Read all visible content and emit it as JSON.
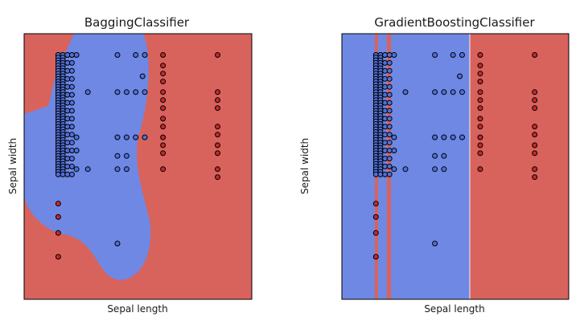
{
  "chart_data": [
    {
      "type": "scatter",
      "title": "BaggingClassifier",
      "xlabel": "Sepal length",
      "ylabel": "Sepal width",
      "xlim": [
        0,
        10
      ],
      "ylim": [
        0,
        10
      ],
      "ticks_shown": false,
      "grid": false,
      "legend": "none",
      "background": "decision regions",
      "region_colors": {
        "class_0": "#d8635c",
        "class_1": "#6f88e4"
      },
      "point_colors": {
        "class_0": "#c22a2a",
        "class_1": "#5070d8"
      },
      "series": [
        {
          "class": "class_1",
          "points": [
            [
              1.5,
              9.2
            ],
            [
              1.7,
              9.2
            ],
            [
              1.9,
              9.2
            ],
            [
              2.1,
              9.2
            ],
            [
              2.3,
              9.2
            ],
            [
              4.1,
              9.2
            ],
            [
              4.9,
              9.2
            ],
            [
              5.3,
              9.2
            ],
            [
              1.5,
              7.8
            ],
            [
              2.8,
              7.8
            ],
            [
              4.1,
              7.8
            ],
            [
              4.5,
              7.8
            ],
            [
              4.9,
              7.8
            ],
            [
              5.3,
              7.8
            ],
            [
              5.2,
              8.4
            ],
            [
              2.3,
              6.1
            ],
            [
              4.1,
              6.1
            ],
            [
              4.5,
              6.1
            ],
            [
              4.9,
              6.1
            ],
            [
              5.3,
              6.1
            ],
            [
              2.3,
              5.6
            ],
            [
              4.1,
              5.4
            ],
            [
              4.5,
              5.4
            ],
            [
              2.3,
              4.9
            ],
            [
              2.8,
              4.9
            ],
            [
              4.1,
              4.9
            ],
            [
              4.5,
              4.9
            ],
            [
              4.1,
              2.1
            ]
          ]
        },
        {
          "class": "class_0",
          "points": [
            [
              6.1,
              9.2
            ],
            [
              6.1,
              8.8
            ],
            [
              6.1,
              8.5
            ],
            [
              6.1,
              8.2
            ],
            [
              6.1,
              7.8
            ],
            [
              6.1,
              7.5
            ],
            [
              6.1,
              7.2
            ],
            [
              6.1,
              6.8
            ],
            [
              6.1,
              6.5
            ],
            [
              6.1,
              6.1
            ],
            [
              6.1,
              5.8
            ],
            [
              6.1,
              5.5
            ],
            [
              6.1,
              4.9
            ],
            [
              8.5,
              9.2
            ],
            [
              8.5,
              7.8
            ],
            [
              8.5,
              7.5
            ],
            [
              8.5,
              7.2
            ],
            [
              8.5,
              6.5
            ],
            [
              8.5,
              6.2
            ],
            [
              8.5,
              5.8
            ],
            [
              8.5,
              5.5
            ],
            [
              8.5,
              4.9
            ],
            [
              8.5,
              4.6
            ],
            [
              1.5,
              3.6
            ],
            [
              1.5,
              3.1
            ],
            [
              1.5,
              2.5
            ],
            [
              1.5,
              1.6
            ]
          ]
        }
      ]
    },
    {
      "type": "scatter",
      "title": "GradientBoostingClassifier",
      "xlabel": "Sepal length",
      "ylabel": "Sepal width",
      "xlim": [
        0,
        10
      ],
      "ylim": [
        0,
        10
      ],
      "ticks_shown": false,
      "grid": false,
      "legend": "none",
      "background": "decision regions",
      "region_colors": {
        "class_0": "#d8635c",
        "class_1": "#6f88e4"
      },
      "point_colors": {
        "class_0": "#c22a2a",
        "class_1": "#5070d8"
      },
      "series": [
        {
          "class": "class_1",
          "points": [
            [
              1.5,
              9.2
            ],
            [
              1.7,
              9.2
            ],
            [
              1.9,
              9.2
            ],
            [
              2.1,
              9.2
            ],
            [
              2.3,
              9.2
            ],
            [
              4.1,
              9.2
            ],
            [
              4.9,
              9.2
            ],
            [
              5.3,
              9.2
            ],
            [
              1.5,
              7.8
            ],
            [
              2.8,
              7.8
            ],
            [
              4.1,
              7.8
            ],
            [
              4.5,
              7.8
            ],
            [
              4.9,
              7.8
            ],
            [
              5.3,
              7.8
            ],
            [
              5.2,
              8.4
            ],
            [
              2.3,
              6.1
            ],
            [
              4.1,
              6.1
            ],
            [
              4.5,
              6.1
            ],
            [
              4.9,
              6.1
            ],
            [
              5.3,
              6.1
            ],
            [
              2.3,
              5.6
            ],
            [
              4.1,
              5.4
            ],
            [
              4.5,
              5.4
            ],
            [
              2.3,
              4.9
            ],
            [
              2.8,
              4.9
            ],
            [
              4.1,
              4.9
            ],
            [
              4.5,
              4.9
            ],
            [
              4.1,
              2.1
            ]
          ]
        },
        {
          "class": "class_0",
          "points": [
            [
              6.1,
              9.2
            ],
            [
              6.1,
              8.8
            ],
            [
              6.1,
              8.5
            ],
            [
              6.1,
              8.2
            ],
            [
              6.1,
              7.8
            ],
            [
              6.1,
              7.5
            ],
            [
              6.1,
              7.2
            ],
            [
              6.1,
              6.8
            ],
            [
              6.1,
              6.5
            ],
            [
              6.1,
              6.1
            ],
            [
              6.1,
              5.8
            ],
            [
              6.1,
              5.5
            ],
            [
              6.1,
              4.9
            ],
            [
              8.5,
              9.2
            ],
            [
              8.5,
              7.8
            ],
            [
              8.5,
              7.5
            ],
            [
              8.5,
              7.2
            ],
            [
              8.5,
              6.5
            ],
            [
              8.5,
              6.2
            ],
            [
              8.5,
              5.8
            ],
            [
              8.5,
              5.5
            ],
            [
              8.5,
              4.9
            ],
            [
              8.5,
              4.6
            ],
            [
              1.5,
              3.6
            ],
            [
              1.5,
              3.1
            ],
            [
              1.5,
              2.5
            ],
            [
              1.5,
              1.6
            ]
          ]
        }
      ]
    }
  ]
}
